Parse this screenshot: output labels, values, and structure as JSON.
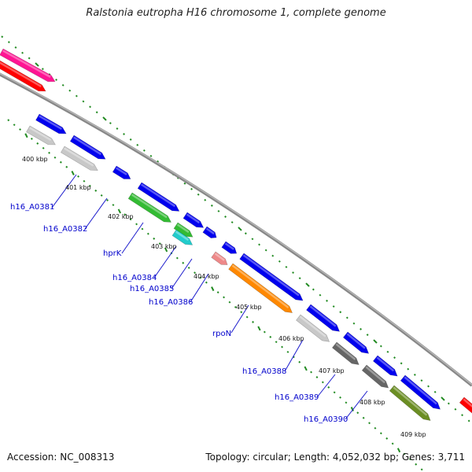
{
  "header": {
    "title": "Ralstonia eutropha H16 chromosome 1, complete genome"
  },
  "footer": {
    "accession": "Accession: NC_008313",
    "summary": "Topology: circular; Length: 4,052,032 bp; Genes: 3,711"
  },
  "kbp_ticks": [
    {
      "text": "400 kbp"
    },
    {
      "text": "401 kbp"
    },
    {
      "text": "402 kbp"
    },
    {
      "text": "403 kbp"
    },
    {
      "text": "404 kbp"
    },
    {
      "text": "405 kbp"
    },
    {
      "text": "406 kbp"
    },
    {
      "text": "407 kbp"
    },
    {
      "text": "408 kbp"
    },
    {
      "text": "409 kbp"
    }
  ],
  "gene_labels": [
    {
      "text": "h16_A0381"
    },
    {
      "text": "h16_A0382"
    },
    {
      "text": "hprK"
    },
    {
      "text": "h16_A0384"
    },
    {
      "text": "h16_A0385"
    },
    {
      "text": "h16_A0386"
    },
    {
      "text": "rpoN"
    },
    {
      "text": "h16_A0388"
    },
    {
      "text": "h16_A0389"
    },
    {
      "text": "h16_A0390"
    }
  ],
  "colors": {
    "blue": "#0000ee",
    "silver": "#c8c8c8",
    "green": "#33bb33",
    "cyan": "#22cccc",
    "pink": "#ee8888",
    "orange": "#ff8800",
    "darkgray": "#666666",
    "olive": "#6b8e23",
    "red": "#ff0000",
    "magenta": "#ff1493",
    "backbone": "#888888",
    "ticks": "#228b22"
  }
}
